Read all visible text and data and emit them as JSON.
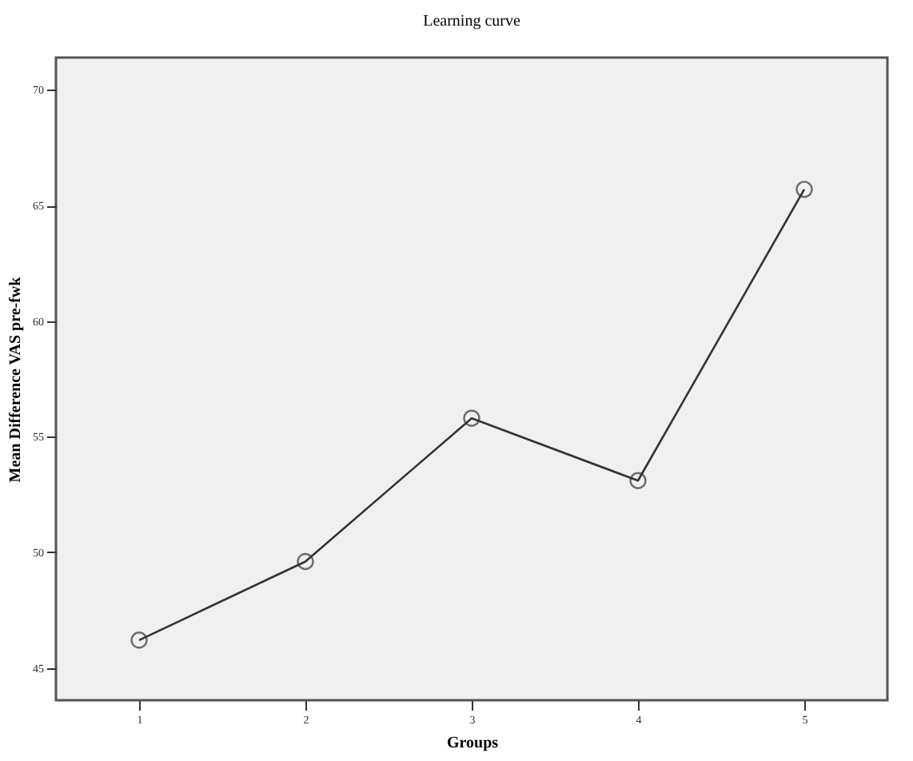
{
  "chart_data": {
    "type": "line",
    "title": "Learning curve",
    "xlabel": "Groups",
    "ylabel": "Mean Difference VAS pre-fwk",
    "categories": [
      "1",
      "2",
      "3",
      "4",
      "5"
    ],
    "series": [
      {
        "color": "#333333",
        "values": [
          46.2,
          49.6,
          55.8,
          53.1,
          65.7
        ]
      }
    ],
    "ylim": [
      43.6,
      71.4
    ],
    "yticks": [
      45,
      50,
      55,
      60,
      65,
      70
    ],
    "marker": "circle",
    "grid": false,
    "legend": false
  }
}
